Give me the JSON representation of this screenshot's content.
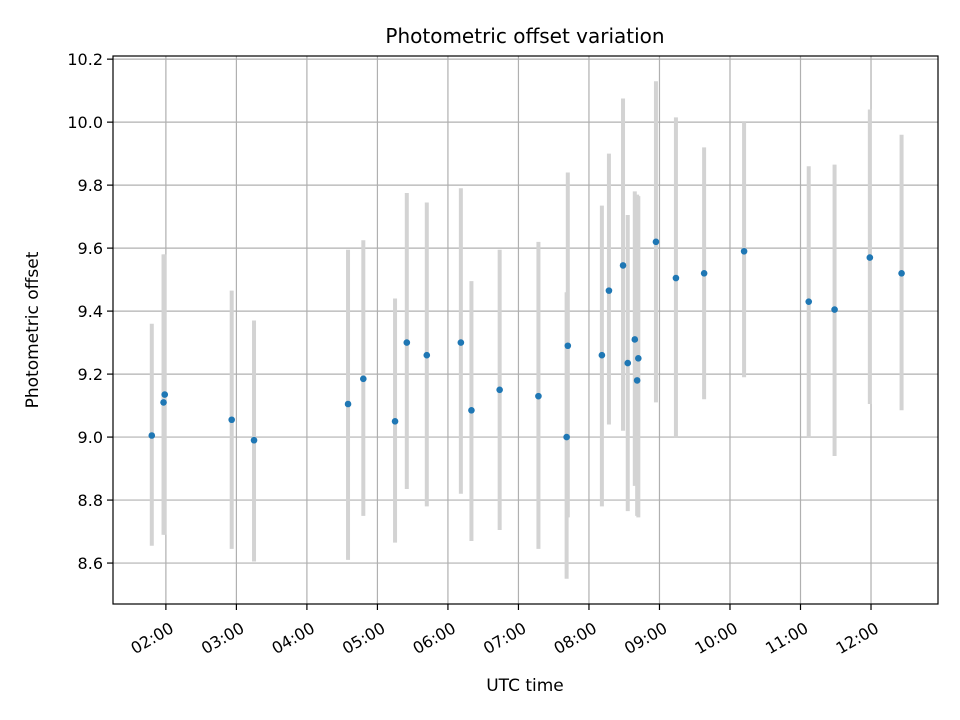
{
  "chart_data": {
    "type": "scatter",
    "title": "Photometric offset variation",
    "xlabel": "UTC time",
    "ylabel": "Photometric offset",
    "x_unit": "hours UTC",
    "xlim": [
      "01:15",
      "12:57"
    ],
    "ylim": [
      8.47,
      10.21
    ],
    "x_ticks": [
      "02:00",
      "03:00",
      "04:00",
      "05:00",
      "06:00",
      "07:00",
      "08:00",
      "09:00",
      "10:00",
      "11:00",
      "12:00"
    ],
    "y_ticks": [
      "8.6",
      "8.8",
      "9.0",
      "9.2",
      "9.4",
      "9.6",
      "9.8",
      "10.0",
      "10.2"
    ],
    "grid": true,
    "marker_color": "#1f77b4",
    "errorbar_color": "#d3d3d3",
    "points": [
      {
        "x": "01:48",
        "y": 9.005,
        "yerr": [
          8.655,
          9.36
        ]
      },
      {
        "x": "01:58",
        "y": 9.11,
        "yerr": [
          8.69,
          9.58
        ]
      },
      {
        "x": "01:59",
        "y": 9.135,
        "yerr": [
          8.69,
          9.58
        ]
      },
      {
        "x": "02:56",
        "y": 9.055,
        "yerr": [
          8.645,
          9.465
        ]
      },
      {
        "x": "03:15",
        "y": 8.99,
        "yerr": [
          8.605,
          9.37
        ]
      },
      {
        "x": "04:35",
        "y": 9.105,
        "yerr": [
          8.61,
          9.595
        ]
      },
      {
        "x": "04:48",
        "y": 9.185,
        "yerr": [
          8.75,
          9.625
        ]
      },
      {
        "x": "05:15",
        "y": 9.05,
        "yerr": [
          8.665,
          9.44
        ]
      },
      {
        "x": "05:25",
        "y": 9.3,
        "yerr": [
          8.835,
          9.775
        ]
      },
      {
        "x": "05:42",
        "y": 9.26,
        "yerr": [
          8.78,
          9.745
        ]
      },
      {
        "x": "06:11",
        "y": 9.3,
        "yerr": [
          8.82,
          9.79
        ]
      },
      {
        "x": "06:20",
        "y": 9.085,
        "yerr": [
          8.67,
          9.495
        ]
      },
      {
        "x": "06:44",
        "y": 9.15,
        "yerr": [
          8.705,
          9.595
        ]
      },
      {
        "x": "07:17",
        "y": 9.13,
        "yerr": [
          8.645,
          9.62
        ]
      },
      {
        "x": "07:41",
        "y": 9.0,
        "yerr": [
          8.55,
          9.46
        ]
      },
      {
        "x": "07:42",
        "y": 9.29,
        "yerr": [
          8.745,
          9.84
        ]
      },
      {
        "x": "08:11",
        "y": 9.26,
        "yerr": [
          8.78,
          9.735
        ]
      },
      {
        "x": "08:17",
        "y": 9.465,
        "yerr": [
          9.04,
          9.9
        ]
      },
      {
        "x": "08:29",
        "y": 9.545,
        "yerr": [
          9.02,
          10.075
        ]
      },
      {
        "x": "08:33",
        "y": 9.235,
        "yerr": [
          8.765,
          9.705
        ]
      },
      {
        "x": "08:39",
        "y": 9.31,
        "yerr": [
          8.845,
          9.78
        ]
      },
      {
        "x": "08:41",
        "y": 9.18,
        "yerr": [
          8.75,
          9.77
        ]
      },
      {
        "x": "08:42",
        "y": 9.25,
        "yerr": [
          8.745,
          9.765
        ]
      },
      {
        "x": "08:57",
        "y": 9.62,
        "yerr": [
          9.11,
          10.13
        ]
      },
      {
        "x": "09:14",
        "y": 9.505,
        "yerr": [
          9.0,
          10.015
        ]
      },
      {
        "x": "09:38",
        "y": 9.52,
        "yerr": [
          9.12,
          9.92
        ]
      },
      {
        "x": "10:12",
        "y": 9.59,
        "yerr": [
          9.19,
          10.0
        ]
      },
      {
        "x": "11:07",
        "y": 9.43,
        "yerr": [
          9.0,
          9.86
        ]
      },
      {
        "x": "11:29",
        "y": 9.405,
        "yerr": [
          8.94,
          9.865
        ]
      },
      {
        "x": "11:59",
        "y": 9.57,
        "yerr": [
          9.105,
          10.04
        ]
      },
      {
        "x": "12:26",
        "y": 9.52,
        "yerr": [
          9.085,
          9.96
        ]
      }
    ]
  }
}
